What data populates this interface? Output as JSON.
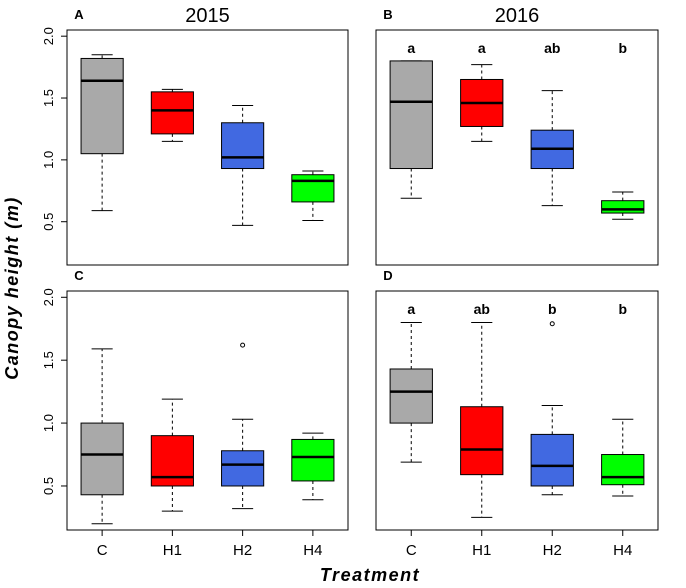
{
  "chart_data": [
    {
      "type": "box",
      "panel": "A",
      "title": "2015",
      "categories": [
        "C",
        "H1",
        "H2",
        "H4"
      ],
      "colors": [
        "#a9a9a9",
        "#ff0000",
        "#4169e1",
        "#00ff00"
      ],
      "ylim": [
        0.15,
        2.05
      ],
      "yticks": [
        "0.5",
        "1.0",
        "1.5",
        "2.0"
      ],
      "boxes": [
        {
          "min": 0.59,
          "q1": 1.05,
          "median": 1.64,
          "q3": 1.82,
          "max": 1.85,
          "outliers": []
        },
        {
          "min": 1.15,
          "q1": 1.21,
          "median": 1.4,
          "q3": 1.55,
          "max": 1.57,
          "outliers": []
        },
        {
          "min": 0.47,
          "q1": 0.93,
          "median": 1.02,
          "q3": 1.3,
          "max": 1.44,
          "outliers": []
        },
        {
          "min": 0.51,
          "q1": 0.66,
          "median": 0.83,
          "q3": 0.88,
          "max": 0.91,
          "outliers": []
        }
      ],
      "sig_letters": []
    },
    {
      "type": "box",
      "panel": "B",
      "title": "2016",
      "categories": [
        "C",
        "H1",
        "H2",
        "H4"
      ],
      "colors": [
        "#a9a9a9",
        "#ff0000",
        "#4169e1",
        "#00ff00"
      ],
      "ylim": [
        0.15,
        2.05
      ],
      "yticks": [],
      "boxes": [
        {
          "min": 0.69,
          "q1": 0.93,
          "median": 1.47,
          "q3": 1.8,
          "max": 1.8,
          "outliers": []
        },
        {
          "min": 1.15,
          "q1": 1.27,
          "median": 1.46,
          "q3": 1.65,
          "max": 1.77,
          "outliers": []
        },
        {
          "min": 0.63,
          "q1": 0.93,
          "median": 1.09,
          "q3": 1.24,
          "max": 1.56,
          "outliers": []
        },
        {
          "min": 0.52,
          "q1": 0.57,
          "median": 0.6,
          "q3": 0.67,
          "max": 0.74,
          "outliers": []
        }
      ],
      "sig_letters": [
        "a",
        "a",
        "ab",
        "b"
      ]
    },
    {
      "type": "box",
      "panel": "C",
      "title": "",
      "categories": [
        "C",
        "H1",
        "H2",
        "H4"
      ],
      "colors": [
        "#a9a9a9",
        "#ff0000",
        "#4169e1",
        "#00ff00"
      ],
      "ylim": [
        0.15,
        2.05
      ],
      "yticks": [
        "0.5",
        "1.0",
        "1.5",
        "2.0"
      ],
      "boxes": [
        {
          "min": 0.2,
          "q1": 0.43,
          "median": 0.75,
          "q3": 1.0,
          "max": 1.59,
          "outliers": []
        },
        {
          "min": 0.3,
          "q1": 0.5,
          "median": 0.57,
          "q3": 0.9,
          "max": 1.19,
          "outliers": []
        },
        {
          "min": 0.32,
          "q1": 0.5,
          "median": 0.67,
          "q3": 0.78,
          "max": 1.03,
          "outliers": [
            1.62
          ]
        },
        {
          "min": 0.39,
          "q1": 0.54,
          "median": 0.73,
          "q3": 0.87,
          "max": 0.92,
          "outliers": []
        }
      ],
      "sig_letters": []
    },
    {
      "type": "box",
      "panel": "D",
      "title": "",
      "categories": [
        "C",
        "H1",
        "H2",
        "H4"
      ],
      "colors": [
        "#a9a9a9",
        "#ff0000",
        "#4169e1",
        "#00ff00"
      ],
      "ylim": [
        0.15,
        2.05
      ],
      "yticks": [],
      "boxes": [
        {
          "min": 0.69,
          "q1": 1.0,
          "median": 1.25,
          "q3": 1.43,
          "max": 1.8,
          "outliers": []
        },
        {
          "min": 0.25,
          "q1": 0.59,
          "median": 0.79,
          "q3": 1.13,
          "max": 1.8,
          "outliers": []
        },
        {
          "min": 0.43,
          "q1": 0.5,
          "median": 0.66,
          "q3": 0.91,
          "max": 1.14,
          "outliers": [
            1.79
          ]
        },
        {
          "min": 0.42,
          "q1": 0.51,
          "median": 0.57,
          "q3": 0.75,
          "max": 1.03,
          "outliers": []
        }
      ],
      "sig_letters": [
        "a",
        "ab",
        "b",
        "b"
      ]
    }
  ],
  "ylabel": "Canopy height (m)",
  "xlabel": "Treatment"
}
